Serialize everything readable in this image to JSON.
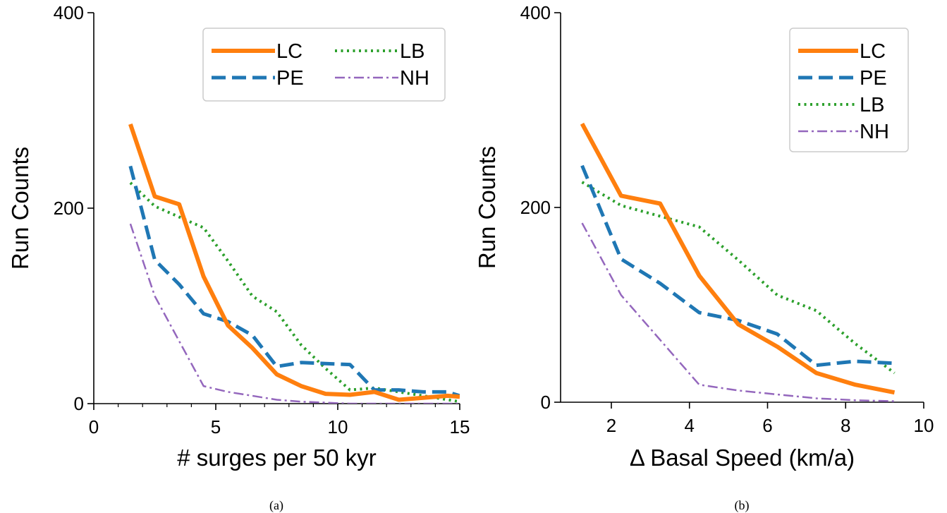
{
  "colors": {
    "LC": "#ff7f0e",
    "PE": "#1f77b4",
    "LB": "#2ca02c",
    "NH": "#9467bd"
  },
  "chart_data": [
    {
      "type": "line",
      "caption": "(a)",
      "xlabel": "# surges per 50 kyr",
      "ylabel": "Run Counts",
      "xlim": [
        0,
        15
      ],
      "ylim": [
        0,
        400
      ],
      "xticks": [
        0,
        5,
        10,
        15
      ],
      "yticks": [
        0,
        200,
        400
      ],
      "x_minor_ticks": [
        1,
        2,
        3,
        4,
        6,
        7,
        8,
        9,
        11,
        12,
        13,
        14
      ],
      "legend": {
        "placement": "top-right",
        "columns": 2
      },
      "x": [
        1.5,
        2.5,
        3.5,
        4.5,
        5.5,
        6.5,
        7.5,
        8.5,
        9.5,
        10.5,
        11.5,
        12.5,
        13.5,
        14.5,
        15.0
      ],
      "series": [
        {
          "name": "LC",
          "style": "solid",
          "values": [
            286,
            212,
            204,
            130,
            80,
            57,
            30,
            18,
            10,
            9,
            12,
            4,
            6,
            8,
            7
          ]
        },
        {
          "name": "PE",
          "style": "dashed",
          "values": [
            243,
            147,
            122,
            92,
            84,
            70,
            38,
            42,
            41,
            40,
            14,
            14,
            12,
            12,
            8
          ]
        },
        {
          "name": "LB",
          "style": "dotted",
          "values": [
            226,
            202,
            191,
            180,
            146,
            110,
            94,
            60,
            36,
            14,
            16,
            12,
            8,
            4,
            2
          ]
        },
        {
          "name": "NH",
          "style": "dashdot",
          "values": [
            184,
            110,
            64,
            18,
            12,
            8,
            4,
            2,
            1,
            0,
            0,
            0,
            0,
            0,
            0
          ]
        }
      ]
    },
    {
      "type": "line",
      "caption": "(b)",
      "xlabel": "Δ Basal Speed (km/a)",
      "ylabel": "Run Counts",
      "xlim": [
        0.7,
        10
      ],
      "ylim": [
        0,
        400
      ],
      "xticks": [
        2,
        4,
        6,
        8,
        10
      ],
      "yticks": [
        0,
        200,
        400
      ],
      "legend": {
        "placement": "top-right",
        "columns": 1
      },
      "x": [
        1.25,
        2.25,
        3.25,
        4.25,
        5.25,
        6.25,
        7.25,
        8.25,
        9.25
      ],
      "series": [
        {
          "name": "LC",
          "style": "solid",
          "values": [
            286,
            212,
            204,
            130,
            80,
            57,
            30,
            18,
            10
          ]
        },
        {
          "name": "PE",
          "style": "dashed",
          "values": [
            243,
            147,
            122,
            92,
            84,
            70,
            38,
            42,
            40
          ]
        },
        {
          "name": "LB",
          "style": "dotted",
          "values": [
            226,
            202,
            191,
            180,
            146,
            110,
            94,
            60,
            30
          ]
        },
        {
          "name": "NH",
          "style": "dashdot",
          "values": [
            184,
            110,
            64,
            18,
            12,
            8,
            4,
            2,
            1
          ]
        }
      ]
    }
  ]
}
